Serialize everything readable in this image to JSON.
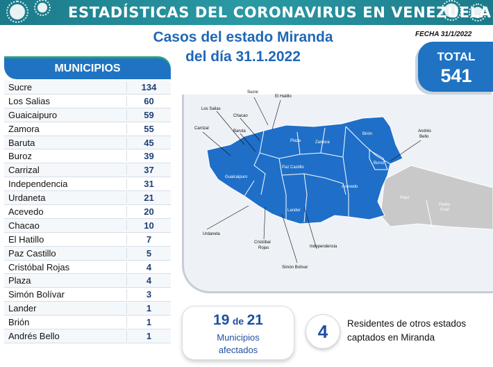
{
  "header": {
    "title": "ESTADÍSTICAS DEL CORONAVIRUS EN VENEZUELA",
    "subtitle_line1": "Casos del estado Miranda",
    "subtitle_line2": "del día 31.1.2022",
    "date": "FECHA 31/1/2022",
    "banner_color": "#1c7a8a"
  },
  "total": {
    "label": "TOTAL",
    "value": "541",
    "color": "#1f73c2"
  },
  "municipios": {
    "header": "MUNICIPIOS",
    "rows": [
      {
        "name": "Sucre",
        "value": "134"
      },
      {
        "name": "Los Salias",
        "value": "60"
      },
      {
        "name": "Guaicaipuro",
        "value": "59"
      },
      {
        "name": "Zamora",
        "value": "55"
      },
      {
        "name": "Baruta",
        "value": "45"
      },
      {
        "name": "Buroz",
        "value": "39"
      },
      {
        "name": "Carrizal",
        "value": "37"
      },
      {
        "name": "Independencia",
        "value": "31"
      },
      {
        "name": "Urdaneta",
        "value": "21"
      },
      {
        "name": "Acevedo",
        "value": "20"
      },
      {
        "name": "Chacao",
        "value": "10"
      },
      {
        "name": "El Hatillo",
        "value": "7"
      },
      {
        "name": "Paz Castillo",
        "value": "5"
      },
      {
        "name": "Cristóbal Rojas",
        "value": "4"
      },
      {
        "name": "Plaza",
        "value": "4"
      },
      {
        "name": "Simón Bolívar",
        "value": "3"
      },
      {
        "name": "Lander",
        "value": "1"
      },
      {
        "name": "Brión",
        "value": "1"
      },
      {
        "name": "Andrés Bello",
        "value": "1"
      }
    ]
  },
  "map": {
    "affected_color": "#1f6fc8",
    "unaffected_color": "#c9c9c9",
    "labels": {
      "sucre": "Sucre",
      "el_hatillo": "El Hatillo",
      "los_salias": "Los Salias",
      "chacao": "Chacao",
      "carrizal": "Carrizal",
      "baruta": "Baruta",
      "plaza": "Plaza",
      "zamora": "Zamora",
      "brion": "Brión",
      "andres_bello_1": "Andrés",
      "andres_bello_2": "Bello",
      "buroz": "Buroz",
      "paz_castillo": "Paz Castillo",
      "guaicaipuro": "Guaicaipuro",
      "acevedo": "Acevedo",
      "paez": "Páez",
      "pedro_gual_1": "Pedro",
      "pedro_gual_2": "Gual",
      "lander": "Lander",
      "urdaneta": "Urdaneta",
      "cristobal_rojas_1": "Cristóbal",
      "cristobal_rojas_2": "Rojas",
      "independencia": "Independencia",
      "simon_bolivar": "Simón Bolívar"
    }
  },
  "summary": {
    "affected": "19",
    "of_word": "de",
    "total_munis": "21",
    "affected_label_1": "Municipios",
    "affected_label_2": "afectados",
    "other_states_count": "4",
    "other_states_text_1": "Residentes de otros estados",
    "other_states_text_2": "captados en Miranda"
  }
}
